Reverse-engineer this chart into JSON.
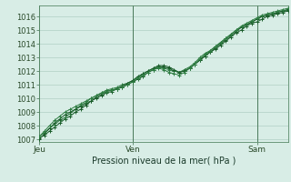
{
  "xlabel": "Pression niveau de la mer( hPa )",
  "bg_color": "#d8ede6",
  "grid_color": "#b0cfc4",
  "line_color_dark": "#1a5c2a",
  "line_color_med": "#2e7d42",
  "ylim": [
    1006.8,
    1016.8
  ],
  "xlim": [
    0,
    48
  ],
  "xtick_positions": [
    0,
    18,
    42
  ],
  "xtick_labels": [
    "Jeu",
    "Ven",
    "Sam"
  ],
  "ytick_positions": [
    1007,
    1008,
    1009,
    1010,
    1011,
    1012,
    1013,
    1014,
    1015,
    1016
  ],
  "vline_positions": [
    0,
    18,
    42
  ],
  "x": [
    0,
    1,
    2,
    3,
    4,
    5,
    6,
    7,
    8,
    9,
    10,
    11,
    12,
    13,
    14,
    15,
    16,
    17,
    18,
    19,
    20,
    21,
    22,
    23,
    24,
    25,
    26,
    27,
    28,
    29,
    30,
    31,
    32,
    33,
    34,
    35,
    36,
    37,
    38,
    39,
    40,
    41,
    42,
    43,
    44,
    45,
    46,
    47,
    48
  ],
  "line1_y": [
    1007.1,
    1007.3,
    1007.6,
    1007.9,
    1008.2,
    1008.5,
    1008.7,
    1009.0,
    1009.2,
    1009.5,
    1009.8,
    1010.0,
    1010.2,
    1010.4,
    1010.5,
    1010.7,
    1010.8,
    1011.0,
    1011.2,
    1011.4,
    1011.6,
    1011.9,
    1012.1,
    1012.3,
    1012.3,
    1012.2,
    1012.0,
    1011.9,
    1012.0,
    1012.2,
    1012.5,
    1012.8,
    1013.1,
    1013.4,
    1013.6,
    1013.9,
    1014.2,
    1014.5,
    1014.8,
    1015.0,
    1015.3,
    1015.5,
    1015.6,
    1015.8,
    1016.0,
    1016.1,
    1016.2,
    1016.3,
    1016.4
  ],
  "line2_y": [
    1007.2,
    1007.5,
    1007.8,
    1008.1,
    1008.4,
    1008.6,
    1008.9,
    1009.2,
    1009.5,
    1009.7,
    1010.0,
    1010.2,
    1010.4,
    1010.6,
    1010.7,
    1010.8,
    1011.0,
    1011.1,
    1011.3,
    1011.5,
    1011.8,
    1012.0,
    1012.2,
    1012.3,
    1012.2,
    1012.1,
    1012.0,
    1011.9,
    1012.1,
    1012.3,
    1012.6,
    1013.0,
    1013.3,
    1013.5,
    1013.8,
    1014.1,
    1014.4,
    1014.7,
    1015.0,
    1015.2,
    1015.4,
    1015.6,
    1015.8,
    1016.0,
    1016.1,
    1016.2,
    1016.3,
    1016.4,
    1016.5
  ],
  "line3_y": [
    1007.0,
    1007.4,
    1007.8,
    1008.2,
    1008.5,
    1008.8,
    1009.0,
    1009.2,
    1009.4,
    1009.6,
    1009.8,
    1010.1,
    1010.3,
    1010.5,
    1010.6,
    1010.7,
    1010.9,
    1011.1,
    1011.3,
    1011.6,
    1011.8,
    1012.0,
    1012.2,
    1012.4,
    1012.4,
    1012.3,
    1012.1,
    1011.9,
    1012.0,
    1012.2,
    1012.5,
    1012.8,
    1013.1,
    1013.4,
    1013.7,
    1014.0,
    1014.3,
    1014.6,
    1014.9,
    1015.2,
    1015.4,
    1015.6,
    1015.8,
    1016.0,
    1016.1,
    1016.2,
    1016.3,
    1016.4,
    1016.5
  ],
  "line4_y": [
    1007.2,
    1007.6,
    1008.0,
    1008.4,
    1008.7,
    1009.0,
    1009.2,
    1009.4,
    1009.6,
    1009.8,
    1010.0,
    1010.2,
    1010.4,
    1010.5,
    1010.6,
    1010.7,
    1010.8,
    1011.0,
    1011.2,
    1011.5,
    1011.7,
    1011.9,
    1012.1,
    1012.2,
    1012.1,
    1011.9,
    1011.8,
    1011.7,
    1011.9,
    1012.2,
    1012.5,
    1012.9,
    1013.2,
    1013.5,
    1013.8,
    1014.1,
    1014.4,
    1014.7,
    1015.0,
    1015.3,
    1015.5,
    1015.7,
    1015.9,
    1016.1,
    1016.2,
    1016.3,
    1016.4,
    1016.5,
    1016.6
  ]
}
